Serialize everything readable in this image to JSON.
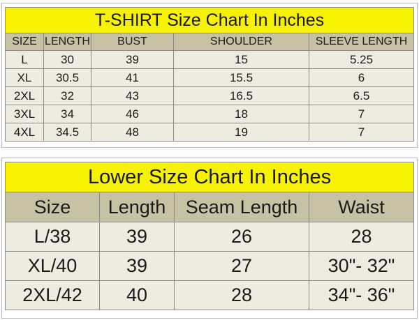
{
  "tshirt_chart": {
    "title": "T-SHIRT Size Chart In Inches",
    "headers": [
      "SIZE",
      "LENGTH",
      "BUST",
      "SHOULDER",
      "SLEEVE LENGTH"
    ],
    "rows": [
      [
        "L",
        "30",
        "39",
        "15",
        "5.25"
      ],
      [
        "XL",
        "30.5",
        "41",
        "15.5",
        "6"
      ],
      [
        "2XL",
        "32",
        "43",
        "16.5",
        "6.5"
      ],
      [
        "3XL",
        "34",
        "46",
        "18",
        "7"
      ],
      [
        "4XL",
        "34.5",
        "48",
        "19",
        "7"
      ]
    ]
  },
  "lower_chart": {
    "title": "Lower Size Chart In Inches",
    "headers": [
      "Size",
      "Length",
      "Seam Length",
      "Waist"
    ],
    "rows": [
      [
        "L/38",
        "39",
        "26",
        "28"
      ],
      [
        "XL/40",
        "39",
        "27",
        "30\"- 32\""
      ],
      [
        "2XL/42",
        "40",
        "28",
        "34\"- 36\""
      ]
    ]
  },
  "colors": {
    "title_bg": "#f7f200",
    "header_bg": "#c8c2a5",
    "row_bg": "#eeece1"
  }
}
